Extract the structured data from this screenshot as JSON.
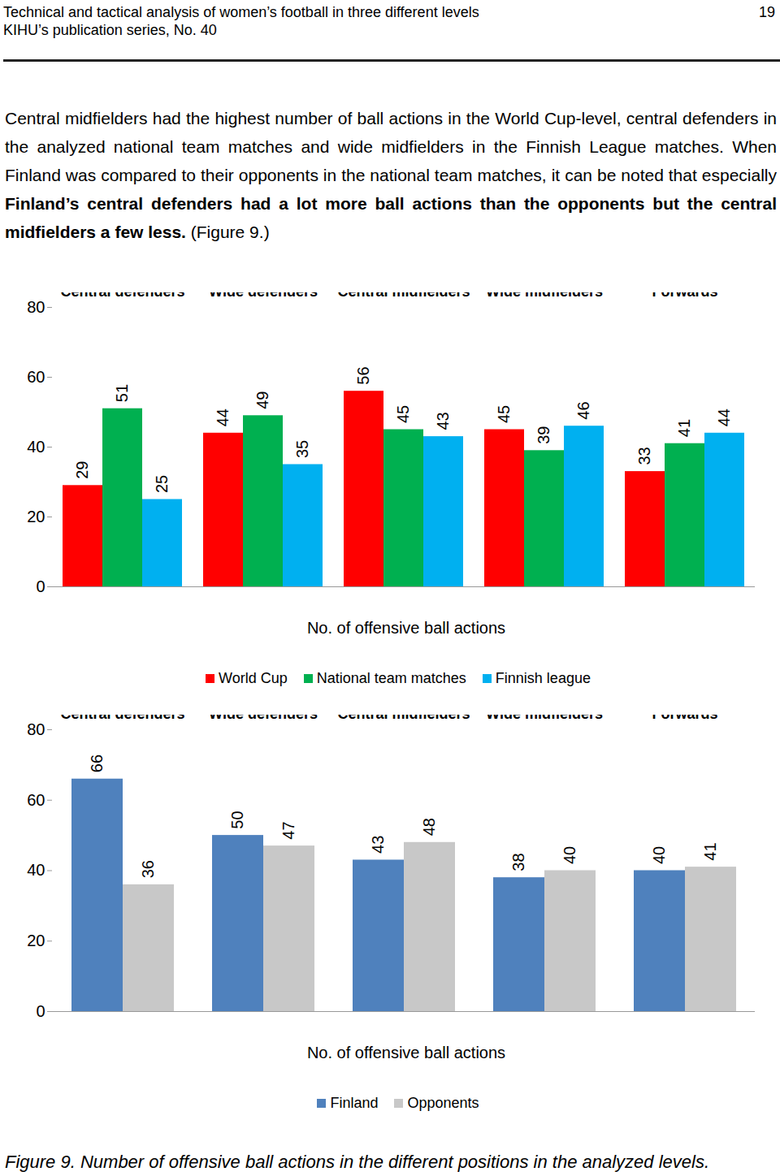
{
  "header": {
    "lines": [
      "Technical and tactical analysis of women’s football in three different levels",
      "KIHU’s publication series, No. 40"
    ],
    "page_number": "19"
  },
  "paragraph": [
    {
      "text": "Central midfielders had the highest number of ball actions in the World Cup-level, central defenders in the analyzed national team matches and wide midfielders in the Finnish League matches. When Finland was compared to their opponents in the national team matches, it can be noted that especially ",
      "bold": false
    },
    {
      "text": "Finland’s central defenders had a lot more ball actions than the opponents but the central midfielders a few less.",
      "bold": true
    },
    {
      "text": " (Figure 9.)",
      "bold": false
    }
  ],
  "chart_data": [
    {
      "type": "bar",
      "x_label": "No. of offensive ball actions",
      "categories": [
        "Central defenders",
        "Wide defenders",
        "Central midfielders",
        "Wide midfielders",
        "Forwards"
      ],
      "series": [
        {
          "name": "World Cup",
          "color": "#ff0000",
          "values": [
            29,
            44,
            56,
            45,
            33
          ]
        },
        {
          "name": "National team matches",
          "color": "#00b050",
          "values": [
            51,
            49,
            45,
            39,
            41
          ]
        },
        {
          "name": "Finnish league",
          "color": "#00b0f0",
          "values": [
            25,
            35,
            43,
            46,
            44
          ]
        }
      ],
      "ylim": [
        0,
        80
      ],
      "yticks": [
        0,
        20,
        40,
        60,
        80
      ],
      "grid": false,
      "legend": "bottom",
      "data_labels": true
    },
    {
      "type": "bar",
      "x_label": "No. of offensive ball actions",
      "categories": [
        "Central defenders",
        "Wide defenders",
        "Central midfielders",
        "Wide midfielders",
        "Forwards"
      ],
      "series": [
        {
          "name": "Finland",
          "color": "#4f81bd",
          "values": [
            66,
            50,
            43,
            38,
            40
          ]
        },
        {
          "name": "Opponents",
          "color": "#c8c8c8",
          "values": [
            36,
            47,
            48,
            40,
            41
          ]
        }
      ],
      "ylim": [
        0,
        80
      ],
      "yticks": [
        0,
        20,
        40,
        60,
        80
      ],
      "grid": false,
      "legend": "bottom",
      "data_labels": true
    }
  ],
  "caption": "Figure 9. Number of offensive ball actions in the different positions in the analyzed levels."
}
